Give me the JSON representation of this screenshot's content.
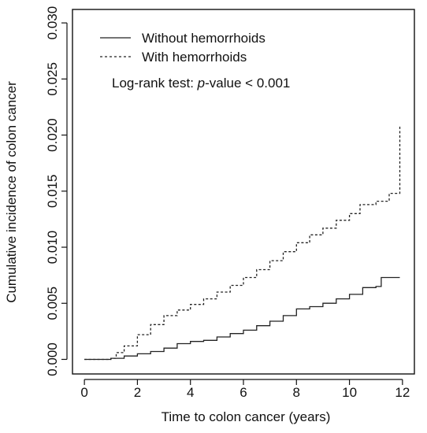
{
  "chart_data": {
    "type": "line",
    "title": "",
    "xlabel": "Time to colon cancer (years)",
    "ylabel": "Cumulative incidence of colon cancer",
    "xlim": [
      -0.45,
      12.45
    ],
    "ylim": [
      -0.0013,
      0.0312
    ],
    "xticks": [
      0,
      2,
      4,
      6,
      8,
      10,
      12
    ],
    "xtick_labels": [
      "0",
      "2",
      "4",
      "6",
      "8",
      "10",
      "12"
    ],
    "yticks": [
      0.0,
      0.005,
      0.01,
      0.015,
      0.02,
      0.025,
      0.03
    ],
    "ytick_labels": [
      "0.000",
      "0.005",
      "0.010",
      "0.015",
      "0.020",
      "0.025",
      "0.030"
    ],
    "grid": false,
    "legend_position": "top-left",
    "annotation_prefix": "Log-rank test: ",
    "annotation_italic": "p",
    "annotation_suffix": "-value < 0.001",
    "series": [
      {
        "name": "Without hemorrhoids",
        "line_style": "solid",
        "step": true,
        "x": [
          0,
          1.0,
          1.5,
          2.0,
          2.5,
          3.0,
          3.5,
          4.0,
          4.5,
          5.0,
          5.5,
          6.0,
          6.5,
          7.0,
          7.5,
          8.0,
          8.5,
          9.0,
          9.5,
          10.0,
          10.5,
          11.0,
          11.2,
          11.9
        ],
        "y": [
          0,
          0.0001,
          0.0003,
          0.0005,
          0.0007,
          0.001,
          0.0014,
          0.0016,
          0.0017,
          0.002,
          0.0023,
          0.0026,
          0.003,
          0.0034,
          0.0039,
          0.0045,
          0.0047,
          0.005,
          0.0054,
          0.0058,
          0.0064,
          0.0065,
          0.0073,
          0.0073
        ]
      },
      {
        "name": "With hemorrhoids",
        "line_style": "dashed",
        "step": true,
        "x": [
          0,
          1.0,
          1.2,
          1.5,
          2.0,
          2.5,
          3.0,
          3.5,
          4.0,
          4.5,
          5.0,
          5.5,
          6.0,
          6.5,
          7.0,
          7.5,
          8.0,
          8.5,
          9.0,
          9.5,
          10.0,
          10.4,
          10.7,
          11.0,
          11.5,
          11.9,
          11.9
        ],
        "y": [
          0,
          0.0001,
          0.0006,
          0.0012,
          0.0022,
          0.0031,
          0.0039,
          0.0044,
          0.0049,
          0.0054,
          0.006,
          0.0066,
          0.0073,
          0.008,
          0.0088,
          0.0096,
          0.0104,
          0.0111,
          0.0117,
          0.0124,
          0.013,
          0.0138,
          0.0138,
          0.0141,
          0.0148,
          0.0148,
          0.0209
        ]
      }
    ]
  }
}
